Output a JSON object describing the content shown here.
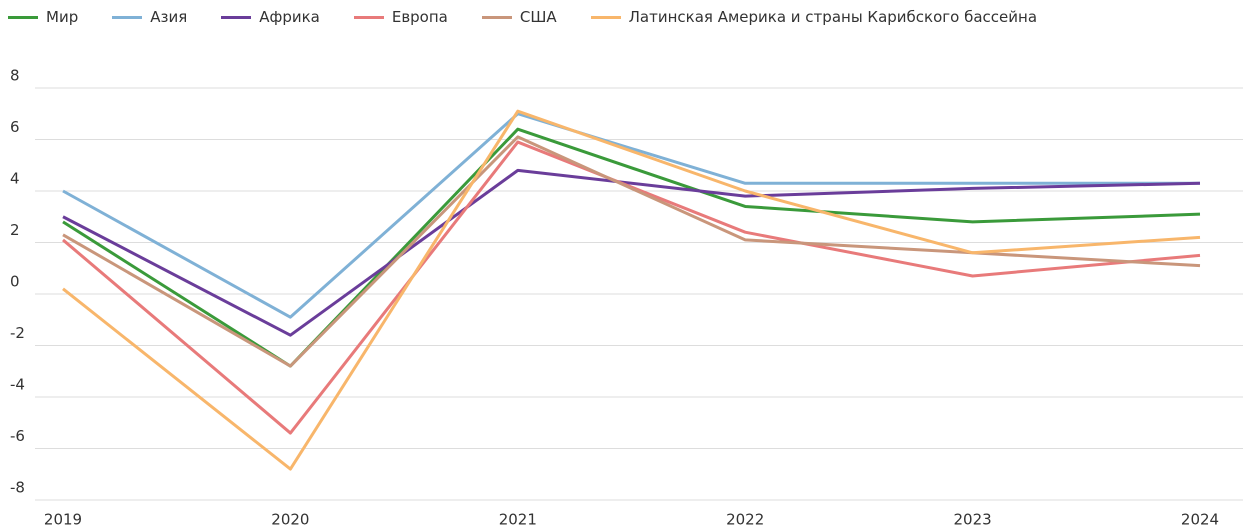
{
  "chart_data": {
    "type": "line",
    "categories": [
      "2019",
      "2020",
      "2021",
      "2022",
      "2023",
      "2024"
    ],
    "series": [
      {
        "name": "Мир",
        "color": "#3a9a3a",
        "values": [
          2.8,
          -2.8,
          6.4,
          3.4,
          2.8,
          3.1
        ]
      },
      {
        "name": "Азия",
        "color": "#7fb1d6",
        "values": [
          4.0,
          -0.9,
          7.0,
          4.3,
          4.3,
          4.3
        ]
      },
      {
        "name": "Африка",
        "color": "#6a3d9a",
        "values": [
          3.0,
          -1.6,
          4.8,
          3.8,
          4.1,
          4.3
        ]
      },
      {
        "name": "Европа",
        "color": "#e87a7a",
        "values": [
          2.1,
          -5.4,
          5.9,
          2.4,
          0.7,
          1.5
        ]
      },
      {
        "name": "США",
        "color": "#c9967b",
        "values": [
          2.3,
          -2.8,
          6.1,
          2.1,
          1.6,
          1.1
        ]
      },
      {
        "name": "Латинская Америка и страны Карибского бассейна",
        "color": "#f8b66b",
        "values": [
          0.2,
          -6.8,
          7.1,
          4.0,
          1.6,
          2.2
        ]
      }
    ],
    "ylim": [
      -8,
      8
    ],
    "yticks": [
      -8,
      -6,
      -4,
      -2,
      0,
      2,
      4,
      6,
      8
    ],
    "grid": true
  }
}
